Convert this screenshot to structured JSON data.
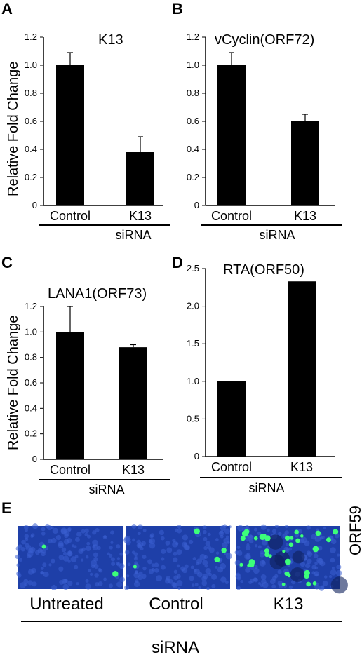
{
  "panels": [
    {
      "letter": "A",
      "title": "K13",
      "ylabel": "Relative Fold Change",
      "xgroup": "siRNA"
    },
    {
      "letter": "B",
      "title": "vCyclin(ORF72)",
      "ylabel": "",
      "xgroup": "siRNA"
    },
    {
      "letter": "C",
      "title": "LANA1(ORF73)",
      "ylabel": "Relative Fold Change",
      "xgroup": "siRNA"
    },
    {
      "letter": "D",
      "title": "RTA(ORF50)",
      "ylabel": "",
      "xgroup": "siRNA"
    }
  ],
  "chart_data": [
    {
      "type": "bar",
      "title": "K13",
      "ylabel": "Relative Fold Change",
      "xlabel": "siRNA",
      "categories": [
        "Control",
        "K13"
      ],
      "values": [
        1.0,
        0.38
      ],
      "errors": [
        0.09,
        0.11
      ],
      "ylim": [
        0,
        1.2
      ],
      "yticks": [
        "0",
        "0.2",
        "0.4",
        "0.6",
        "0.8",
        "1.0",
        "1.2"
      ]
    },
    {
      "type": "bar",
      "title": "vCyclin(ORF72)",
      "ylabel": "",
      "xlabel": "siRNA",
      "categories": [
        "Control",
        "K13"
      ],
      "values": [
        1.0,
        0.6
      ],
      "errors": [
        0.09,
        0.05
      ],
      "ylim": [
        0,
        1.2
      ],
      "yticks": [
        "0",
        "0.2",
        "0.4",
        "0.6",
        "0.8",
        "1.0",
        "1.2"
      ]
    },
    {
      "type": "bar",
      "title": "LANA1(ORF73)",
      "ylabel": "Relative Fold Change",
      "xlabel": "siRNA",
      "categories": [
        "Control",
        "K13"
      ],
      "values": [
        1.0,
        0.88
      ],
      "errors": [
        0.2,
        0.02
      ],
      "ylim": [
        0,
        1.2
      ],
      "yticks": [
        "0",
        "0.2",
        "0.4",
        "0.6",
        "0.8",
        "1.0",
        "1.2"
      ]
    },
    {
      "type": "bar",
      "title": "RTA(ORF50)",
      "ylabel": "",
      "xlabel": "siRNA",
      "categories": [
        "Control",
        "K13"
      ],
      "values": [
        1.0,
        2.33
      ],
      "errors": [
        0.0,
        0.0
      ],
      "ylim": [
        0,
        2.5
      ],
      "yticks": [
        "0",
        "0.5",
        "1.0",
        "1.5",
        "2.0",
        "2.5"
      ]
    }
  ],
  "microscopy": {
    "letter": "E",
    "marker": "ORF59",
    "images": [
      {
        "label": "Untreated",
        "name": "untreated"
      },
      {
        "label": "Control",
        "name": "control"
      },
      {
        "label": "K13",
        "name": "k13"
      }
    ],
    "group_label": "siRNA",
    "colors": {
      "background": "#1e3fa8",
      "cells": "#3b5fcf",
      "positive": "#3cff7a"
    }
  }
}
